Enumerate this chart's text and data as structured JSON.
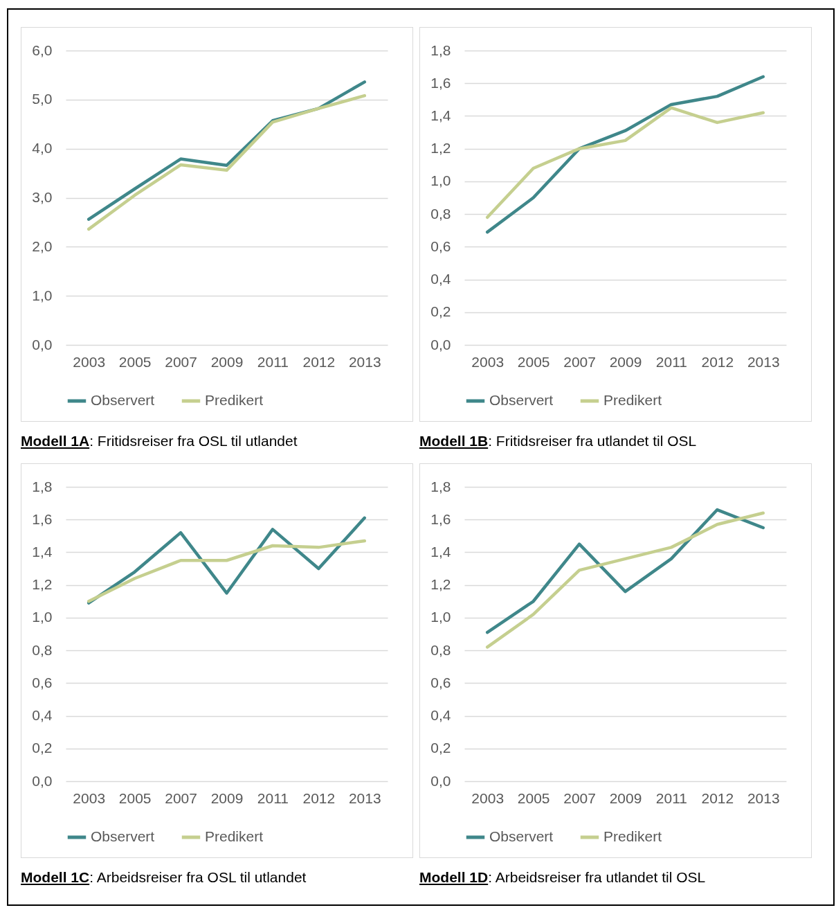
{
  "chart_data": [
    {
      "type": "line",
      "categories": [
        "2003",
        "2005",
        "2007",
        "2009",
        "2011",
        "2012",
        "2013"
      ],
      "ylim": [
        0,
        6
      ],
      "yticks": [
        {
          "value": 0,
          "label": "0,0"
        },
        {
          "value": 1,
          "label": "1,0"
        },
        {
          "value": 2,
          "label": "2,0"
        },
        {
          "value": 3,
          "label": "3,0"
        },
        {
          "value": 4,
          "label": "4,0"
        },
        {
          "value": 5,
          "label": "5,0"
        },
        {
          "value": 6,
          "label": "6,0"
        }
      ],
      "grid": "y",
      "legend": "bottom",
      "annotations": [
        "Modell 1A: Fritidsreiser fra OSL til utlandet"
      ],
      "series": [
        {
          "name": "Observert",
          "color": "#3f878a",
          "values": [
            2.56,
            3.18,
            3.79,
            3.66,
            4.57,
            4.82,
            5.36
          ]
        },
        {
          "name": "Predikert",
          "color": "#c5cf8f",
          "values": [
            2.36,
            3.05,
            3.67,
            3.56,
            4.54,
            4.82,
            5.08
          ]
        }
      ]
    },
    {
      "type": "line",
      "categories": [
        "2003",
        "2005",
        "2007",
        "2009",
        "2011",
        "2012",
        "2013"
      ],
      "ylim": [
        0,
        1.8
      ],
      "yticks": [
        {
          "value": 0,
          "label": "0,0"
        },
        {
          "value": 0.2,
          "label": "0,2"
        },
        {
          "value": 0.4,
          "label": "0,4"
        },
        {
          "value": 0.6,
          "label": "0,6"
        },
        {
          "value": 0.8,
          "label": "0,8"
        },
        {
          "value": 1,
          "label": "1,0"
        },
        {
          "value": 1.2,
          "label": "1,2"
        },
        {
          "value": 1.4,
          "label": "1,4"
        },
        {
          "value": 1.6,
          "label": "1,6"
        },
        {
          "value": 1.8,
          "label": "1,8"
        }
      ],
      "grid": "y",
      "legend": "bottom",
      "annotations": [
        "Modell 1B: Fritidsreiser fra utlandet til OSL"
      ],
      "series": [
        {
          "name": "Observert",
          "color": "#3f878a",
          "values": [
            0.69,
            0.9,
            1.2,
            1.31,
            1.47,
            1.52,
            1.64
          ]
        },
        {
          "name": "Predikert",
          "color": "#c5cf8f",
          "values": [
            0.78,
            1.08,
            1.2,
            1.25,
            1.45,
            1.36,
            1.42
          ]
        }
      ]
    },
    {
      "type": "line",
      "categories": [
        "2003",
        "2005",
        "2007",
        "2009",
        "2011",
        "2012",
        "2013"
      ],
      "ylim": [
        0,
        1.8
      ],
      "yticks": [
        {
          "value": 0,
          "label": "0,0"
        },
        {
          "value": 0.2,
          "label": "0,2"
        },
        {
          "value": 0.4,
          "label": "0,4"
        },
        {
          "value": 0.6,
          "label": "0,6"
        },
        {
          "value": 0.8,
          "label": "0,8"
        },
        {
          "value": 1,
          "label": "1,0"
        },
        {
          "value": 1.2,
          "label": "1,2"
        },
        {
          "value": 1.4,
          "label": "1,4"
        },
        {
          "value": 1.6,
          "label": "1,6"
        },
        {
          "value": 1.8,
          "label": "1,8"
        }
      ],
      "grid": "y",
      "legend": "bottom",
      "annotations": [
        "Modell 1C: Arbeidsreiser fra OSL til utlandet"
      ],
      "series": [
        {
          "name": "Observert",
          "color": "#3f878a",
          "values": [
            1.09,
            1.28,
            1.52,
            1.15,
            1.54,
            1.3,
            1.61
          ]
        },
        {
          "name": "Predikert",
          "color": "#c5cf8f",
          "values": [
            1.1,
            1.24,
            1.35,
            1.35,
            1.44,
            1.43,
            1.47
          ]
        }
      ]
    },
    {
      "type": "line",
      "categories": [
        "2003",
        "2005",
        "2007",
        "2009",
        "2011",
        "2012",
        "2013"
      ],
      "ylim": [
        0,
        1.8
      ],
      "yticks": [
        {
          "value": 0,
          "label": "0,0"
        },
        {
          "value": 0.2,
          "label": "0,2"
        },
        {
          "value": 0.4,
          "label": "0,4"
        },
        {
          "value": 0.6,
          "label": "0,6"
        },
        {
          "value": 0.8,
          "label": "0,8"
        },
        {
          "value": 1,
          "label": "1,0"
        },
        {
          "value": 1.2,
          "label": "1,2"
        },
        {
          "value": 1.4,
          "label": "1,4"
        },
        {
          "value": 1.6,
          "label": "1,6"
        },
        {
          "value": 1.8,
          "label": "1,8"
        }
      ],
      "grid": "y",
      "legend": "bottom",
      "annotations": [
        "Modell 1D: Arbeidsreiser fra utlandet til OSL"
      ],
      "series": [
        {
          "name": "Observert",
          "color": "#3f878a",
          "values": [
            0.91,
            1.1,
            1.45,
            1.16,
            1.36,
            1.66,
            1.55
          ]
        },
        {
          "name": "Predikert",
          "color": "#c5cf8f",
          "values": [
            0.82,
            1.02,
            1.29,
            1.36,
            1.43,
            1.57,
            1.64
          ]
        }
      ]
    }
  ]
}
